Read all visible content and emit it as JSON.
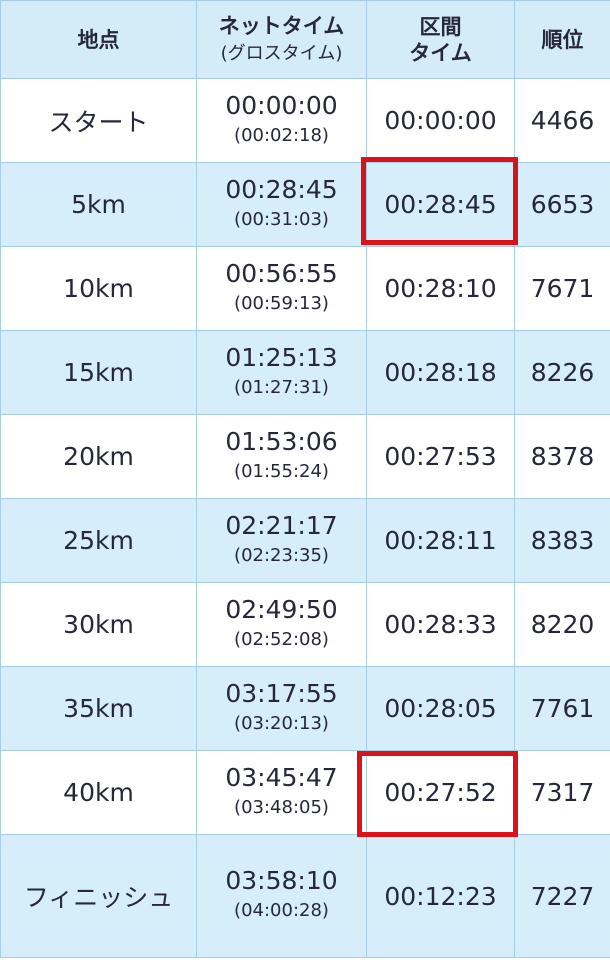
{
  "headers": {
    "place": "地点",
    "net": "ネットタイム",
    "gross": "(グロスタイム)",
    "split_line1": "区間",
    "split_line2": "タイム",
    "rank": "順位"
  },
  "rows": [
    {
      "place": "スタート",
      "net": "00:00:00",
      "gross": "(00:02:18)",
      "split": "00:00:00",
      "rank": "4466",
      "highlighted": false
    },
    {
      "place": "5km",
      "net": "00:28:45",
      "gross": "(00:31:03)",
      "split": "00:28:45",
      "rank": "6653",
      "highlighted": true
    },
    {
      "place": "10km",
      "net": "00:56:55",
      "gross": "(00:59:13)",
      "split": "00:28:10",
      "rank": "7671",
      "highlighted": false
    },
    {
      "place": "15km",
      "net": "01:25:13",
      "gross": "(01:27:31)",
      "split": "00:28:18",
      "rank": "8226",
      "highlighted": false
    },
    {
      "place": "20km",
      "net": "01:53:06",
      "gross": "(01:55:24)",
      "split": "00:27:53",
      "rank": "8378",
      "highlighted": false
    },
    {
      "place": "25km",
      "net": "02:21:17",
      "gross": "(02:23:35)",
      "split": "00:28:11",
      "rank": "8383",
      "highlighted": false
    },
    {
      "place": "30km",
      "net": "02:49:50",
      "gross": "(02:52:08)",
      "split": "00:28:33",
      "rank": "8220",
      "highlighted": false
    },
    {
      "place": "35km",
      "net": "03:17:55",
      "gross": "(03:20:13)",
      "split": "00:28:05",
      "rank": "7761",
      "highlighted": false
    },
    {
      "place": "40km",
      "net": "03:45:47",
      "gross": "(03:48:05)",
      "split": "00:27:52",
      "rank": "7317",
      "highlighted": true
    },
    {
      "place": "フィニッシュ",
      "net": "03:58:10",
      "gross": "(04:00:28)",
      "split": "00:12:23",
      "rank": "7227",
      "highlighted": false
    }
  ],
  "colors": {
    "header_bg": "#d4ecf8",
    "row_alt_bg": "#d6eef9",
    "border": "#a8cde2",
    "highlight": "#d9121c"
  }
}
